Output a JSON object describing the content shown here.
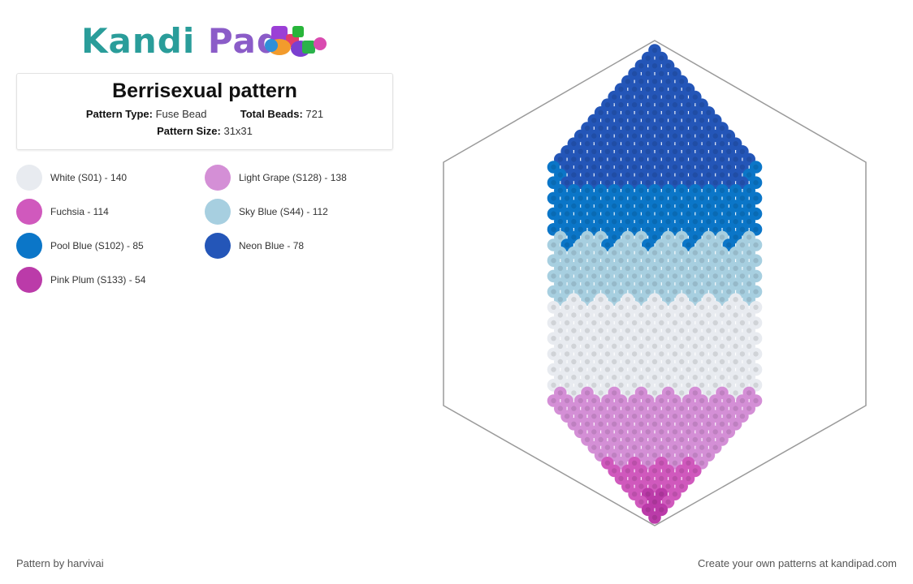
{
  "header": {
    "logo_text_a": "Kandi",
    "logo_text_b": "Pad",
    "logo_icon": "bead-pile-logo"
  },
  "pattern": {
    "title": "Berrisexual pattern",
    "type_label": "Pattern Type:",
    "type_value": "Fuse Bead",
    "beads_label": "Total Beads:",
    "beads_value": "721",
    "size_label": "Pattern Size:",
    "size_value": "31x31"
  },
  "legend": [
    {
      "label": "White (S01) - 140",
      "color": "#e8ebf0"
    },
    {
      "label": "Light Grape (S128) - 138",
      "color": "#d48fd6"
    },
    {
      "label": "Fuchsia - 114",
      "color": "#d059bd"
    },
    {
      "label": "Sky Blue (S44) - 112",
      "color": "#a7cfe0"
    },
    {
      "label": "Pool Blue (S102) - 85",
      "color": "#0b76c8"
    },
    {
      "label": "Neon Blue - 78",
      "color": "#2456b8"
    },
    {
      "label": "Pink Plum (S133) - 54",
      "color": "#bb3ba9"
    }
  ],
  "footer": {
    "credit": "Pattern by harvivai",
    "promo": "Create your own patterns at kandipad.com"
  }
}
